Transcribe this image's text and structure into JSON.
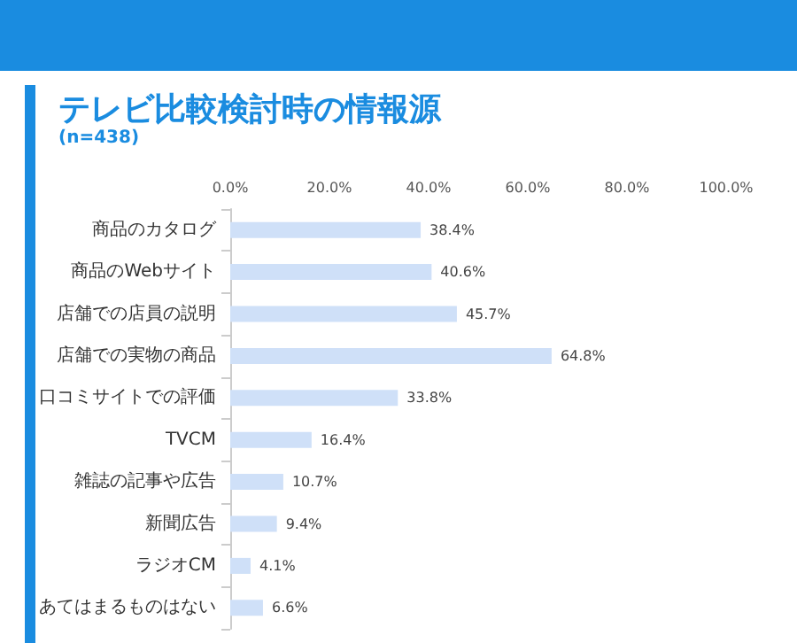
{
  "chart_data": {
    "type": "bar",
    "orientation": "horizontal",
    "title": "テレビ比較検討時の情報源",
    "subtitle": "(n=438)",
    "categories": [
      "商品のカタログ",
      "商品のWebサイト",
      "店舗での店員の説明",
      "店舗での実物の商品",
      "口コミサイトでの評価",
      "TVCM",
      "雑誌の記事や広告",
      "新聞広告",
      "ラジオCM",
      "あてはまるものはない"
    ],
    "values": [
      38.4,
      40.6,
      45.7,
      64.8,
      33.8,
      16.4,
      10.7,
      9.4,
      4.1,
      6.6
    ],
    "value_labels": [
      "38.4%",
      "40.6%",
      "45.7%",
      "64.8%",
      "33.8%",
      "16.4%",
      "10.7%",
      "9.4%",
      "4.1%",
      "6.6%"
    ],
    "color": "#cfe0f8",
    "xlim": [
      0,
      100
    ],
    "xticks": [
      {
        "value": 0,
        "label": "0.0%"
      },
      {
        "value": 20,
        "label": "20.0%"
      },
      {
        "value": 40,
        "label": "40.0%"
      },
      {
        "value": 60,
        "label": "60.0%"
      },
      {
        "value": 80,
        "label": "80.0%"
      },
      {
        "value": 100,
        "label": "100.0%"
      }
    ],
    "grid": false
  }
}
